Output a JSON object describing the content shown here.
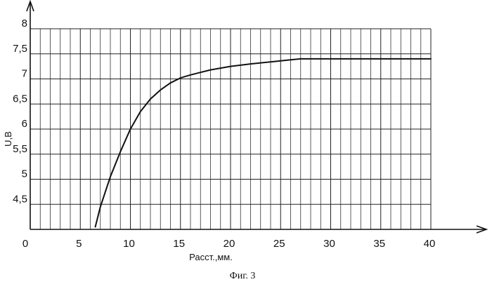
{
  "chart_data": {
    "type": "line",
    "xlabel": "Расст.,мм.",
    "ylabel": "U,B",
    "caption": "Фиг. 3",
    "xlim": [
      0,
      40
    ],
    "ylim": [
      4,
      8
    ],
    "x_ticks": [
      "0",
      "5",
      "10",
      "15",
      "20",
      "25",
      "30",
      "35",
      "40"
    ],
    "y_ticks": [
      "4,5",
      "5",
      "5,5",
      "6",
      "6,5",
      "7",
      "7,5",
      "8"
    ],
    "grid": true,
    "series": [
      {
        "x": [
          6.5,
          7,
          8,
          9,
          10,
          11,
          12,
          13,
          14,
          15,
          16,
          17,
          18,
          20,
          22,
          24,
          26,
          27,
          30,
          35,
          40
        ],
        "y": [
          4.05,
          4.45,
          5.05,
          5.55,
          6.0,
          6.35,
          6.6,
          6.78,
          6.92,
          7.02,
          7.08,
          7.13,
          7.18,
          7.25,
          7.3,
          7.34,
          7.38,
          7.4,
          7.4,
          7.4,
          7.4
        ]
      }
    ]
  }
}
